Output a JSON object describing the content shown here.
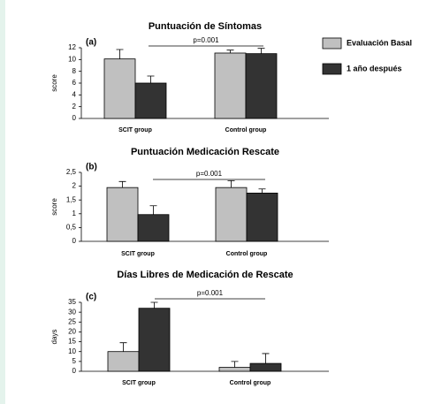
{
  "chart_data": [
    {
      "type": "bar",
      "title": "Puntuación de Síntomas",
      "panel_label": "(a)",
      "y_label": "score",
      "annotation": "p=0.001",
      "categories": [
        "SCIT group",
        "Control group"
      ],
      "series": [
        {
          "name": "Evaluación Basal",
          "color": "#c0c0c0",
          "values": [
            10.1,
            11.1
          ],
          "errors": [
            1.6,
            0.5
          ]
        },
        {
          "name": "1 año después",
          "color": "#333333",
          "values": [
            6.0,
            11.0
          ],
          "errors": [
            1.2,
            0.9
          ]
        }
      ],
      "ylim": [
        0,
        12
      ],
      "yticks": [
        0,
        2,
        4,
        6,
        8,
        10,
        12
      ],
      "legend": "right"
    },
    {
      "type": "bar",
      "title": "Puntuación Medicación Rescate",
      "panel_label": "(b)",
      "y_label": "score",
      "annotation": "p=0.001",
      "categories": [
        "SCIT group",
        "Control group"
      ],
      "series": [
        {
          "values": [
            1.95,
            1.95
          ],
          "errors": [
            0.22,
            0.25
          ]
        },
        {
          "values": [
            0.97,
            1.75
          ],
          "errors": [
            0.32,
            0.15
          ]
        }
      ],
      "ylim": [
        0,
        2.5
      ],
      "yticks": [
        0,
        {
          "value": 0.5,
          "label": "0,5"
        },
        1,
        {
          "value": 1.5,
          "label": "1,5"
        },
        2,
        {
          "value": 2.5,
          "label": "2,5"
        }
      ]
    },
    {
      "type": "bar",
      "title": "Días Libres de Medicación de Rescate",
      "panel_label": "(c)",
      "y_label": "days",
      "annotation": "p=0.001",
      "categories": [
        "SCIT group",
        "Control group"
      ],
      "series": [
        {
          "values": [
            10,
            2
          ],
          "errors": [
            4.5,
            3
          ]
        },
        {
          "values": [
            32,
            4
          ],
          "errors": [
            3,
            5
          ]
        }
      ],
      "ylim": [
        0,
        35
      ],
      "yticks": [
        0,
        5,
        10,
        15,
        20,
        25,
        30,
        35
      ]
    }
  ]
}
